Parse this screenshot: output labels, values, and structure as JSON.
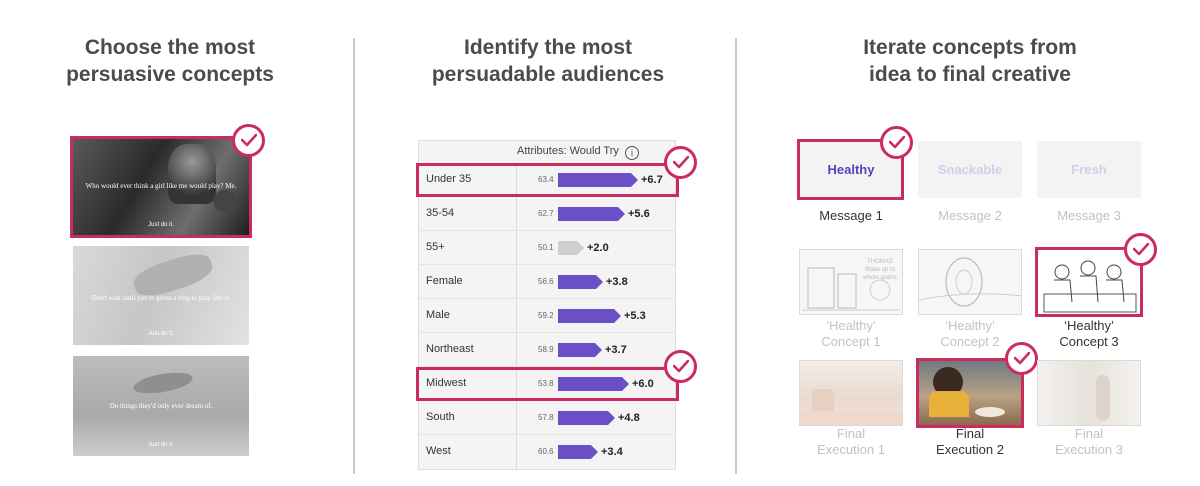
{
  "colors": {
    "accent": "#cc2b5e",
    "bar": "#6b4fc7",
    "bar_muted": "#cfcfcf",
    "muted_text": "#c2c2c2"
  },
  "col1": {
    "heading": [
      "Choose the most",
      "persuasive concepts"
    ],
    "images": [
      {
        "caption": "Who would ever think a girl like me would play? Me.",
        "brand": "Just do it.",
        "selected": true
      },
      {
        "caption": "Don't wait until you're given a ring to play like it.",
        "brand": "Just do it.",
        "selected": false
      },
      {
        "caption": "Do things they'd only ever dream of.",
        "brand": "Just do it.",
        "selected": false
      }
    ]
  },
  "col2": {
    "heading": [
      "Identify the most",
      "persuadable audiences"
    ],
    "column_header": "Attributes: Would Try",
    "info_icon": "info-icon",
    "rows": [
      {
        "label": "Under 35",
        "value": "63.4",
        "delta": "+6.7",
        "highlight": true
      },
      {
        "label": "35-54",
        "value": "62.7",
        "delta": "+5.6",
        "highlight": false
      },
      {
        "label": "55+",
        "value": "50.1",
        "delta": "+2.0",
        "highlight": false,
        "muted": true
      },
      {
        "label": "Female",
        "value": "56.6",
        "delta": "+3.8",
        "highlight": false
      },
      {
        "label": "Male",
        "value": "59.2",
        "delta": "+5.3",
        "highlight": false
      },
      {
        "label": "Northeast",
        "value": "58.9",
        "delta": "+3.7",
        "highlight": false
      },
      {
        "label": "Midwest",
        "value": "53.8",
        "delta": "+6.0",
        "highlight": true
      },
      {
        "label": "South",
        "value": "57.8",
        "delta": "+4.8",
        "highlight": false
      },
      {
        "label": "West",
        "value": "60.6",
        "delta": "+3.4",
        "highlight": false
      }
    ]
  },
  "col3": {
    "heading": [
      "Iterate concepts from",
      "idea to final creative"
    ],
    "messages": [
      {
        "title": "Healthy",
        "label": "Message 1",
        "selected": true
      },
      {
        "title": "Snackable",
        "label": "Message 2",
        "selected": false
      },
      {
        "title": "Fresh",
        "label": "Message 3",
        "selected": false
      }
    ],
    "concepts": [
      {
        "label1": "‘Healthy’",
        "label2": "Concept 1",
        "selected": false,
        "sketch_text": "THOMAS Wake up to whole grains"
      },
      {
        "label1": "‘Healthy’",
        "label2": "Concept 2",
        "selected": false
      },
      {
        "label1": "‘Healthy’",
        "label2": "Concept 3",
        "selected": true
      }
    ],
    "executions": [
      {
        "label1": "Final",
        "label2": "Execution 1",
        "selected": false
      },
      {
        "label1": "Final",
        "label2": "Execution 2",
        "selected": true
      },
      {
        "label1": "Final",
        "label2": "Execution 3",
        "selected": false
      }
    ]
  }
}
